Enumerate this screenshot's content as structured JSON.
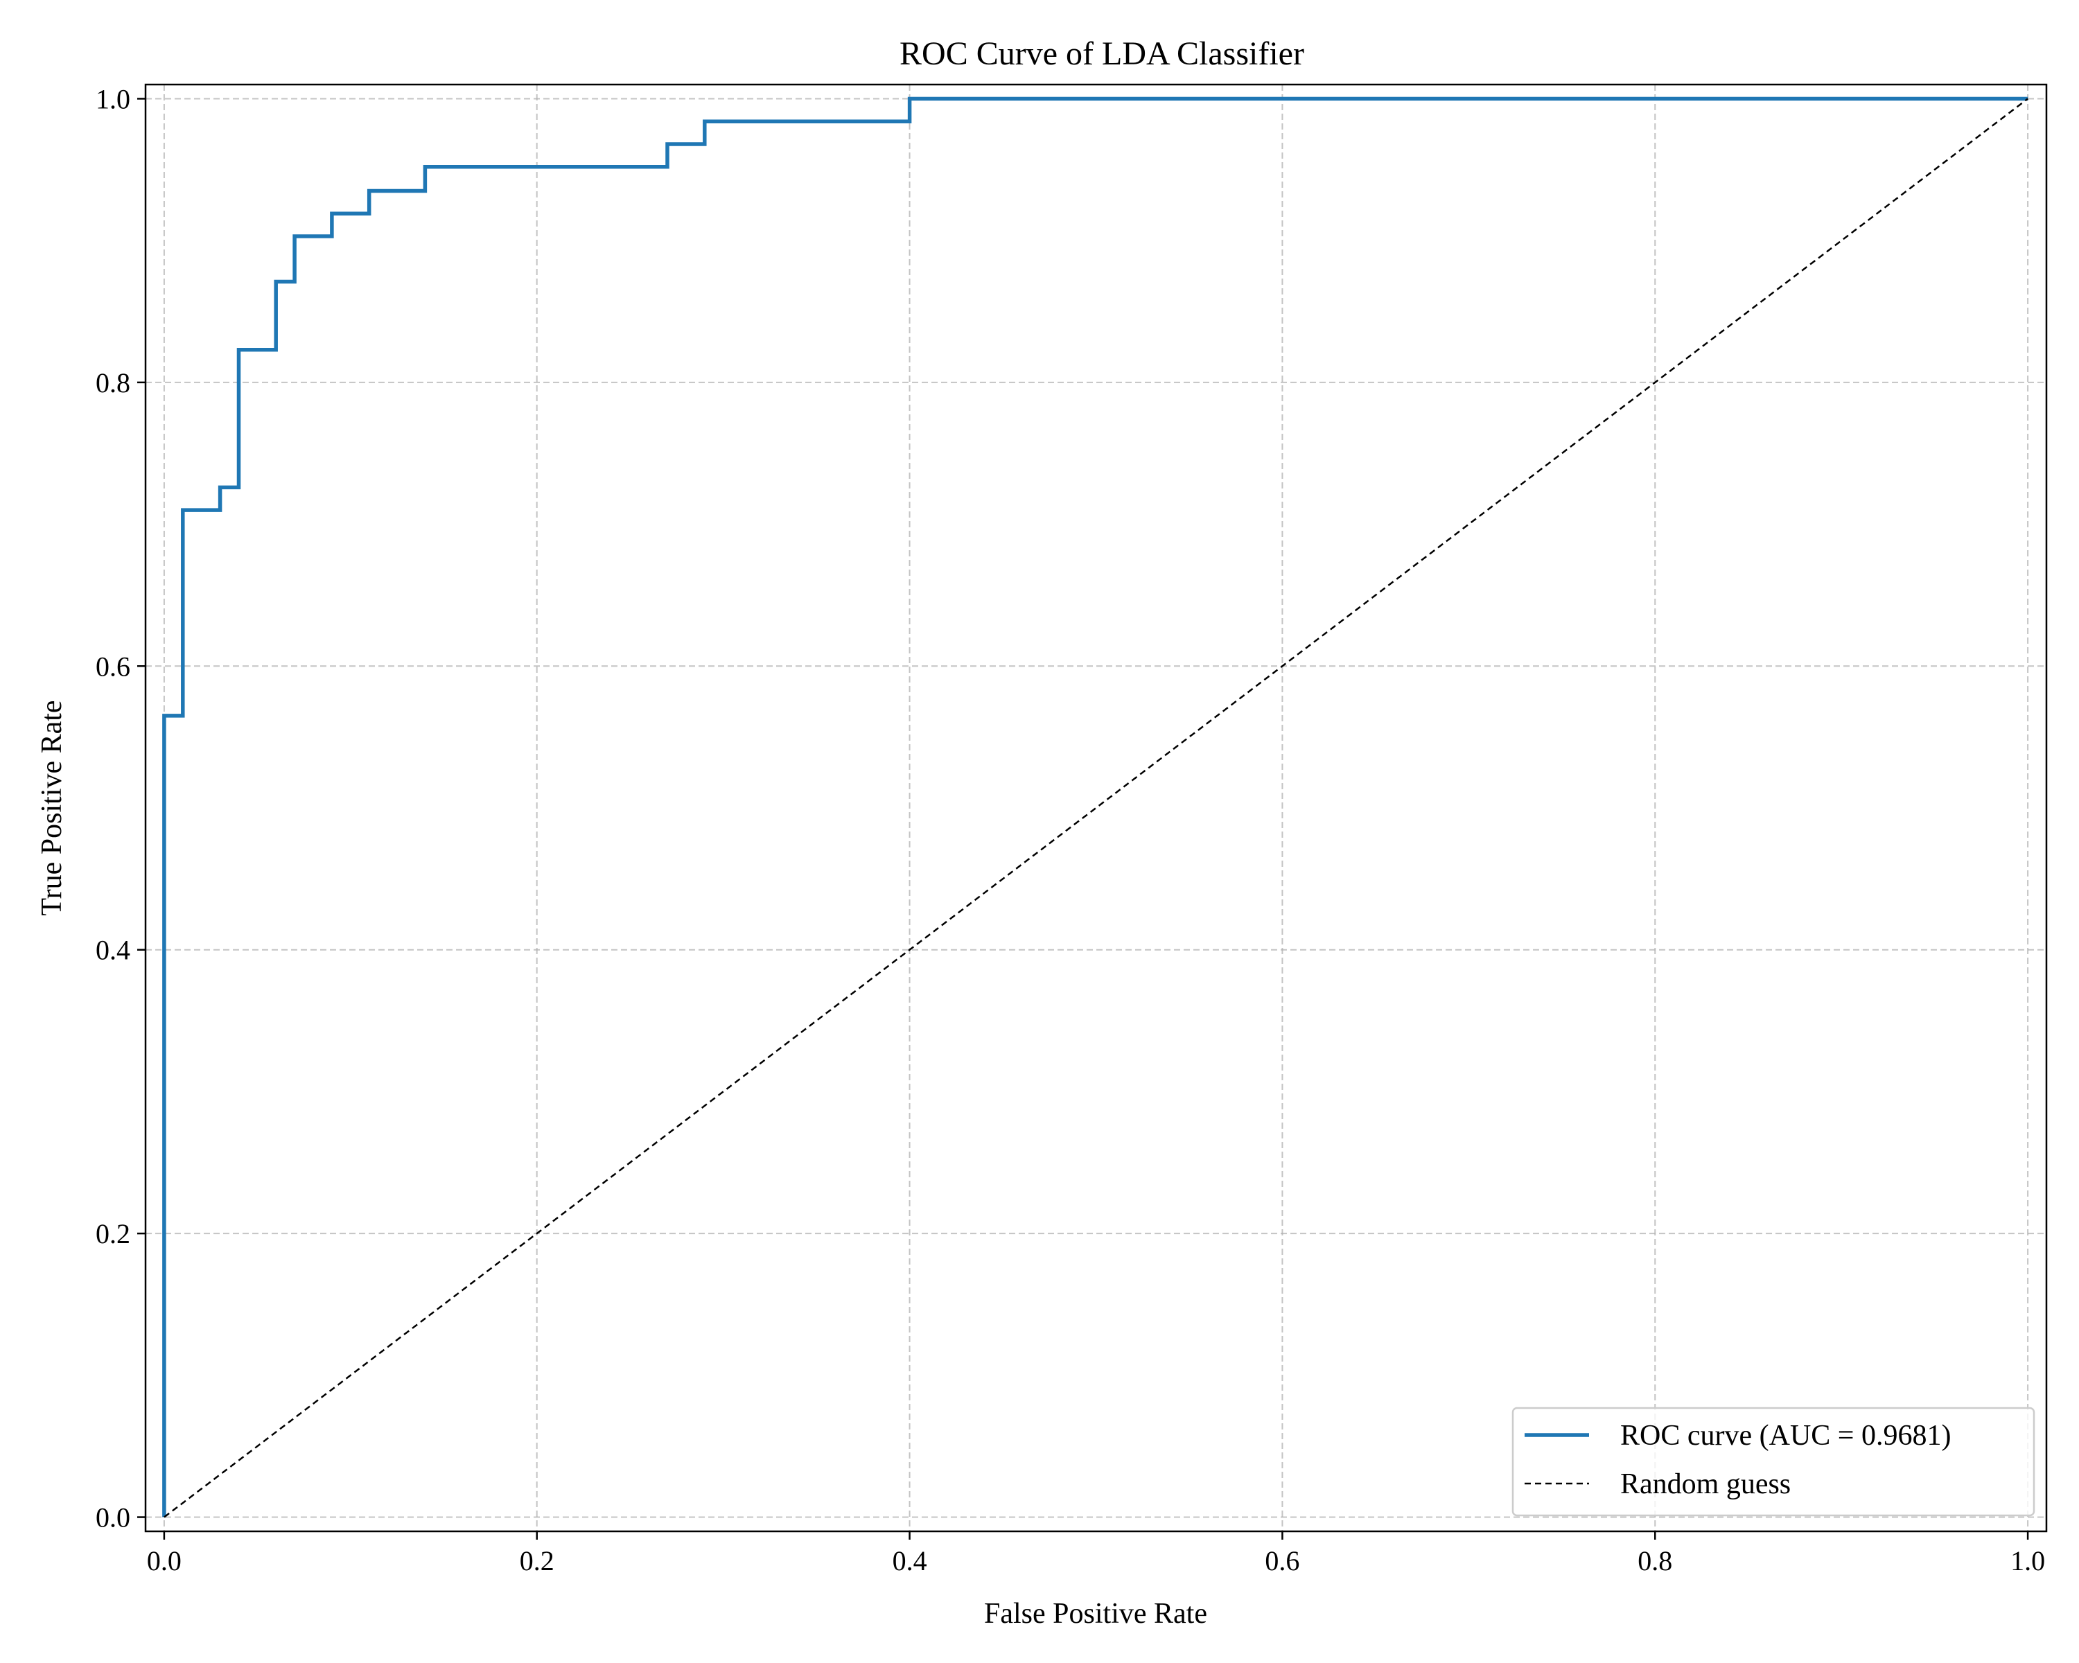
{
  "chart_data": {
    "type": "line",
    "title": "ROC Curve of LDA Classifier",
    "xlabel": "False Positive Rate",
    "ylabel": "True Positive Rate",
    "xlim": [
      -0.01,
      1.01
    ],
    "ylim": [
      -0.01,
      1.01
    ],
    "xticks": [
      0.0,
      0.2,
      0.4,
      0.6,
      0.8,
      1.0
    ],
    "yticks": [
      0.0,
      0.2,
      0.4,
      0.6,
      0.8,
      1.0
    ],
    "xtick_labels": [
      "0.0",
      "0.2",
      "0.4",
      "0.6",
      "0.8",
      "1.0"
    ],
    "ytick_labels": [
      "0.0",
      "0.2",
      "0.4",
      "0.6",
      "0.8",
      "1.0"
    ],
    "grid": true,
    "legend_position": "lower-right",
    "series": [
      {
        "name": "ROC curve (AUC = 0.9681)",
        "style": "solid",
        "color": "#1f77b4",
        "x": [
          0.0,
          0.0,
          0.01,
          0.01,
          0.03,
          0.03,
          0.04,
          0.04,
          0.06,
          0.06,
          0.07,
          0.07,
          0.09,
          0.09,
          0.11,
          0.11,
          0.14,
          0.14,
          0.27,
          0.27,
          0.29,
          0.29,
          0.4,
          0.4,
          1.0
        ],
        "y": [
          0.0,
          0.565,
          0.565,
          0.71,
          0.71,
          0.726,
          0.726,
          0.823,
          0.823,
          0.871,
          0.871,
          0.903,
          0.903,
          0.919,
          0.919,
          0.935,
          0.935,
          0.952,
          0.952,
          0.968,
          0.968,
          0.984,
          0.984,
          1.0,
          1.0
        ]
      },
      {
        "name": "Random guess",
        "style": "dashed",
        "color": "#000000",
        "x": [
          0.0,
          1.0
        ],
        "y": [
          0.0,
          1.0
        ]
      }
    ]
  }
}
